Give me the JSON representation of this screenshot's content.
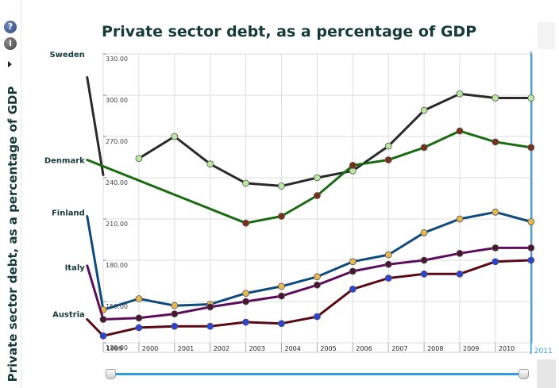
{
  "toolbar": {
    "help_glyph": "?",
    "info_glyph": "i"
  },
  "chart_data": {
    "type": "line",
    "title": "Private sector debt, as a percentage of GDP",
    "ylabel": "Private sector debt, as a percentage of GDP",
    "xlabel": "",
    "x": [
      "1999",
      "2000",
      "2001",
      "2002",
      "2003",
      "2004",
      "2005",
      "2006",
      "2007",
      "2008",
      "2009",
      "2010",
      "2011"
    ],
    "xticks": [
      "1999",
      "2000",
      "2001",
      "2002",
      "2003",
      "2004",
      "2005",
      "2006",
      "2007",
      "2008",
      "2009",
      "2010"
    ],
    "current_year": "2011",
    "ylim": [
      120,
      330
    ],
    "yticks": [
      "120.00",
      "150.00",
      "180.00",
      "210.00",
      "240.00",
      "270.00",
      "300.00",
      "330.00"
    ],
    "grid": true,
    "series": [
      {
        "name": "Sweden",
        "color": "#2a2a2a",
        "marker": "#b8e8a0",
        "values": [
          null,
          254,
          270,
          250,
          236,
          234,
          240,
          245,
          263,
          289,
          301,
          298,
          298
        ],
        "label_y": 330,
        "lead": [
          [
            1998.55,
            313
          ],
          [
            1999,
            242
          ]
        ]
      },
      {
        "name": "Denmark",
        "color": "#1a6b12",
        "marker": "#7a3018",
        "values": [
          null,
          null,
          null,
          null,
          207,
          212,
          227,
          249,
          253,
          262,
          274,
          266,
          262
        ],
        "label_y": 253,
        "lead": [
          [
            1998.55,
            253
          ],
          [
            2003,
            207
          ]
        ]
      },
      {
        "name": "Finland",
        "color": "#0e4a7c",
        "marker": "#e8b850",
        "values": [
          144,
          152,
          147,
          148,
          156,
          161,
          168,
          179,
          184,
          200,
          210,
          215,
          208
        ],
        "label_y": 215,
        "lead": [
          [
            1998.55,
            212
          ],
          [
            1999,
            144
          ]
        ]
      },
      {
        "name": "Italy",
        "color": "#5c0e5c",
        "marker": "#4a1630",
        "values": [
          137,
          138,
          141,
          146,
          150,
          154,
          162,
          172,
          177,
          180,
          185,
          189,
          189
        ],
        "label_y": 175,
        "lead": [
          [
            1998.55,
            176
          ],
          [
            1999,
            137
          ]
        ]
      },
      {
        "name": "Austria",
        "color": "#5a0a14",
        "marker": "#2b44d8",
        "values": [
          125,
          131,
          132,
          132,
          135,
          134,
          139,
          159,
          167,
          170,
          170,
          179,
          180
        ],
        "label_y": 141,
        "lead": [
          [
            1998.55,
            137
          ],
          [
            1999,
            125
          ]
        ]
      }
    ]
  }
}
